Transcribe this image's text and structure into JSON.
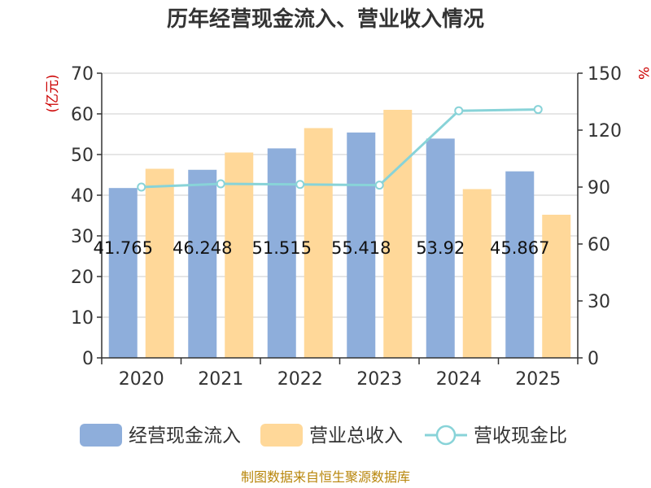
{
  "chart_data": {
    "type": "bar",
    "title": "历年经营现金流入、营业收入情况",
    "categories": [
      "2020",
      "2021",
      "2022",
      "2023",
      "2024",
      "2025"
    ],
    "series": [
      {
        "name": "经营现金流入",
        "type": "bar",
        "axis": "left",
        "color": "#8eaedb",
        "values": [
          41.765,
          46.248,
          51.515,
          55.418,
          53.92,
          45.867
        ],
        "labels": [
          "41.765",
          "46.248",
          "51.515",
          "55.418",
          "53.92",
          "45.867"
        ]
      },
      {
        "name": "营业总收入",
        "type": "bar",
        "axis": "left",
        "color": "#ffd899",
        "values": [
          46.5,
          50.5,
          56.5,
          61.0,
          41.5,
          35.2
        ]
      },
      {
        "name": "营收现金比",
        "type": "line",
        "axis": "right",
        "color": "#88d3d8",
        "values": [
          90.0,
          91.7,
          91.4,
          91.0,
          130.2,
          130.9
        ]
      }
    ],
    "y_left": {
      "label": "(亿元)",
      "min": 0,
      "max": 70,
      "ticks": [
        0,
        10,
        20,
        30,
        40,
        50,
        60,
        70
      ]
    },
    "y_right": {
      "label": "%",
      "min": 0,
      "max": 150,
      "ticks": [
        0,
        30,
        60,
        90,
        120,
        150
      ]
    },
    "grid": true,
    "legend_position": "bottom",
    "source": "制图数据来自恒生聚源数据库"
  }
}
